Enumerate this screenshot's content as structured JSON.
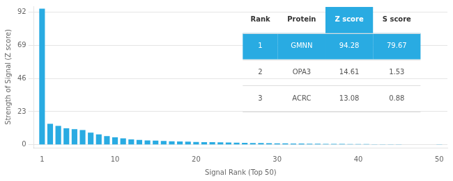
{
  "chart_data": {
    "type": "bar",
    "x": [
      1,
      2,
      3,
      4,
      5,
      6,
      7,
      8,
      9,
      10,
      11,
      12,
      13,
      14,
      15,
      16,
      17,
      18,
      19,
      20,
      21,
      22,
      23,
      24,
      25,
      26,
      27,
      28,
      29,
      30,
      31,
      32,
      33,
      34,
      35,
      36,
      37,
      38,
      39,
      40,
      41,
      42,
      43,
      44,
      45,
      46,
      47,
      48,
      49,
      50
    ],
    "values": [
      94.28,
      14.61,
      13.08,
      11.5,
      10.8,
      10.2,
      8.5,
      7.2,
      6.0,
      5.2,
      4.5,
      3.8,
      3.4,
      3.1,
      2.9,
      2.7,
      2.5,
      2.3,
      2.15,
      2.0,
      1.9,
      1.8,
      1.7,
      1.6,
      1.5,
      1.4,
      1.3,
      1.2,
      1.1,
      1.0,
      0.95,
      0.9,
      0.85,
      0.8,
      0.75,
      0.7,
      0.65,
      0.6,
      0.55,
      0.52,
      0.49,
      0.46,
      0.43,
      0.4,
      0.37,
      0.34,
      0.31,
      0.28,
      0.25,
      0.22
    ],
    "color": "#29ABE2",
    "xlabel": "Signal Rank (Top 50)",
    "ylabel": "Strength of Signal (Z score)",
    "xlim": [
      0,
      51
    ],
    "xticks": [
      1,
      10,
      20,
      30,
      40,
      50
    ],
    "ylim": [
      -2,
      96
    ],
    "yticks": [
      0,
      23,
      46,
      69,
      92
    ],
    "grid": true,
    "table": [
      [
        "Rank",
        "Protein",
        "Z score",
        "S score"
      ],
      [
        "1",
        "GMNN",
        "94.28",
        "79.67"
      ],
      [
        "2",
        "OPA3",
        "14.61",
        "1.53"
      ],
      [
        "3",
        "ACRC",
        "13.08",
        "0.88"
      ]
    ]
  }
}
